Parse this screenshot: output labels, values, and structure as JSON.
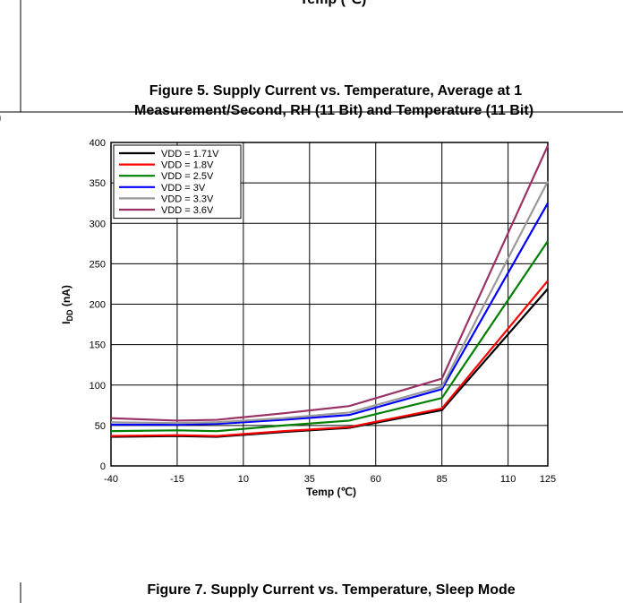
{
  "top_fragment": "Temp (℃)",
  "left_fragment": ")",
  "caption_fig5": [
    "Figure 5. Supply Current vs. Temperature, Average at 1",
    "Measurement/Second, RH (11 Bit) and Temperature (11 Bit)"
  ],
  "caption_fig7": "Figure 7. Supply Current vs. Temperature, Sleep Mode",
  "chart_data": {
    "type": "line",
    "x": [
      -40,
      -15,
      0,
      25,
      50,
      85,
      125
    ],
    "xlabel": "Temp (℃)",
    "ylabel": {
      "main": "I",
      "sub": "DD",
      "unit": " (nA)"
    },
    "xlim": [
      -40,
      125
    ],
    "xticks": [
      -40,
      -15,
      10,
      35,
      60,
      85,
      110,
      125
    ],
    "ylim": [
      0,
      400
    ],
    "yticks": [
      0,
      50,
      100,
      150,
      200,
      250,
      300,
      350,
      400
    ],
    "grid": true,
    "legend": "upper left",
    "series": [
      {
        "name": "VDD = 1.71V",
        "color": "#000000",
        "values": [
          36,
          37,
          36,
          42,
          47,
          69,
          219
        ]
      },
      {
        "name": "VDD = 1.8V",
        "color": "#ff0000",
        "values": [
          37,
          38,
          37,
          43,
          48,
          71,
          229
        ]
      },
      {
        "name": "VDD = 2.5V",
        "color": "#008000",
        "values": [
          43,
          44,
          43,
          50,
          56,
          84,
          278
        ]
      },
      {
        "name": "VDD = 3V",
        "color": "#0000ff",
        "values": [
          51,
          51,
          52,
          57,
          63,
          95,
          325
        ]
      },
      {
        "name": "VDD = 3.3V",
        "color": "#999999",
        "values": [
          54,
          53,
          54,
          59,
          66,
          98,
          352
        ]
      },
      {
        "name": "VDD = 3.6V",
        "color": "#993366",
        "values": [
          59,
          56,
          57,
          65,
          74,
          108,
          396
        ]
      }
    ]
  }
}
